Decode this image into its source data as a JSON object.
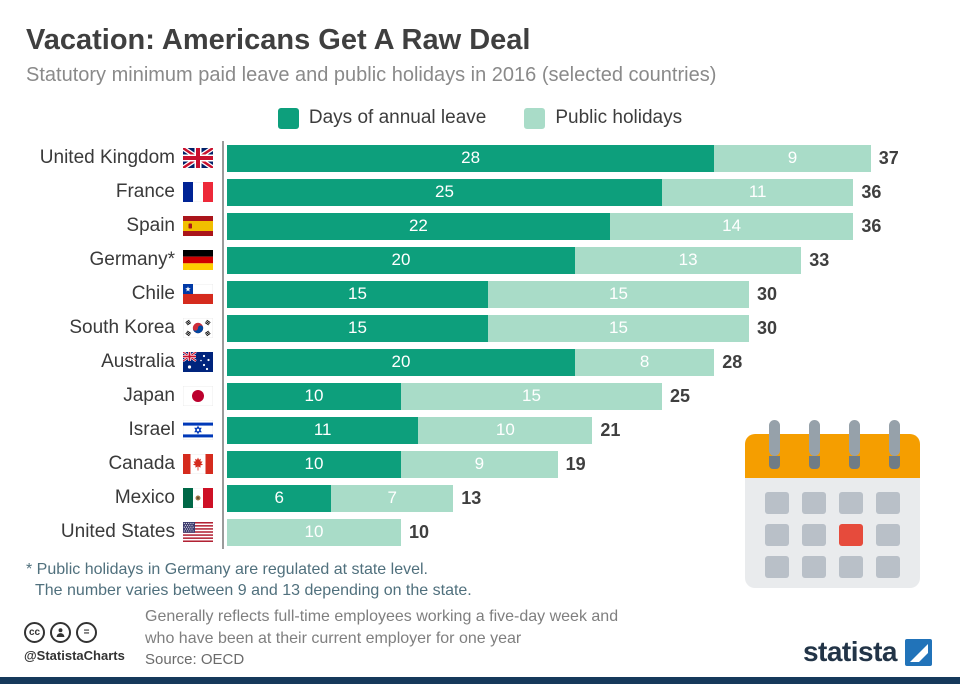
{
  "header": {
    "title": "Vacation: Americans Get A Raw Deal",
    "subtitle": "Statutory minimum paid leave and public holidays in 2016 (selected countries)"
  },
  "legend": [
    {
      "label": "Days of annual leave",
      "color": "#0d9f7c"
    },
    {
      "label": "Public holidays",
      "color": "#a9dcc8"
    }
  ],
  "chart_data": {
    "type": "bar",
    "orientation": "horizontal",
    "stacked": true,
    "categories": [
      "United Kingdom",
      "France",
      "Spain",
      "Germany*",
      "Chile",
      "South Korea",
      "Australia",
      "Japan",
      "Israel",
      "Canada",
      "Mexico",
      "United States"
    ],
    "flags": [
      "gb",
      "fr",
      "es",
      "de",
      "cl",
      "kr",
      "au",
      "jp",
      "il",
      "ca",
      "mx",
      "us"
    ],
    "series": [
      {
        "name": "Days of annual leave",
        "color": "#0d9f7c",
        "values": [
          28,
          25,
          22,
          20,
          15,
          15,
          20,
          10,
          11,
          10,
          6,
          0
        ]
      },
      {
        "name": "Public holidays",
        "color": "#a9dcc8",
        "values": [
          9,
          11,
          14,
          13,
          15,
          15,
          8,
          15,
          10,
          9,
          7,
          10
        ]
      }
    ],
    "totals": [
      37,
      36,
      36,
      33,
      30,
      30,
      28,
      25,
      21,
      19,
      13,
      10
    ],
    "xlim": [
      0,
      37
    ],
    "grid": false,
    "legend_position": "top"
  },
  "footnotes": {
    "asterisk_line1": "* Public holidays in Germany are regulated at state level.",
    "asterisk_line2": "The number varies between 9 and 13 depending on the state.",
    "center": "Generally reflects full-time employees working a five-day week and who have been at their current employer for one year",
    "source": "Source: OECD"
  },
  "branding": {
    "credit": "@StatistaCharts",
    "logo": "statista",
    "cc_equal": "=",
    "cc_label": "cc"
  }
}
